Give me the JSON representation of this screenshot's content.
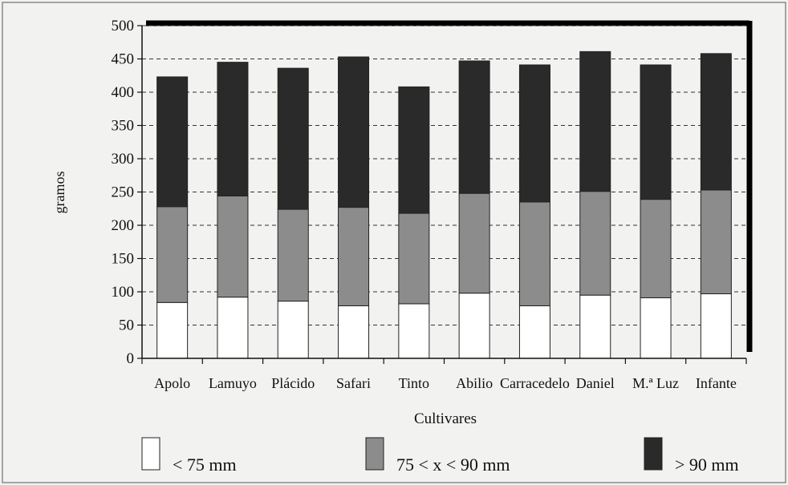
{
  "chart_data": {
    "type": "bar",
    "stacked": true,
    "xlabel": "Cultivares",
    "ylabel": "gramos",
    "ylim": [
      0,
      500
    ],
    "yticks": [
      0,
      50,
      100,
      150,
      200,
      250,
      300,
      350,
      400,
      450,
      500
    ],
    "grid": "horizontal dashed",
    "legend_position": "bottom",
    "categories": [
      "Apolo",
      "Lamuyo",
      "Plácido",
      "Safari",
      "Tinto",
      "Abilio",
      "Carracedelo",
      "Daniel",
      "M.ª Luz",
      "Infante"
    ],
    "series": [
      {
        "name": "< 75 mm",
        "color": "#ffffff",
        "values": [
          84,
          92,
          86,
          79,
          82,
          98,
          79,
          95,
          91,
          97
        ]
      },
      {
        "name": "75 < x < 90 mm",
        "color": "#8c8c8c",
        "values": [
          144,
          152,
          138,
          148,
          136,
          150,
          156,
          156,
          148,
          156
        ]
      },
      {
        "name": "> 90 mm",
        "color": "#2a2a2a",
        "values": [
          195,
          201,
          212,
          226,
          190,
          199,
          206,
          210,
          202,
          205
        ]
      }
    ]
  }
}
